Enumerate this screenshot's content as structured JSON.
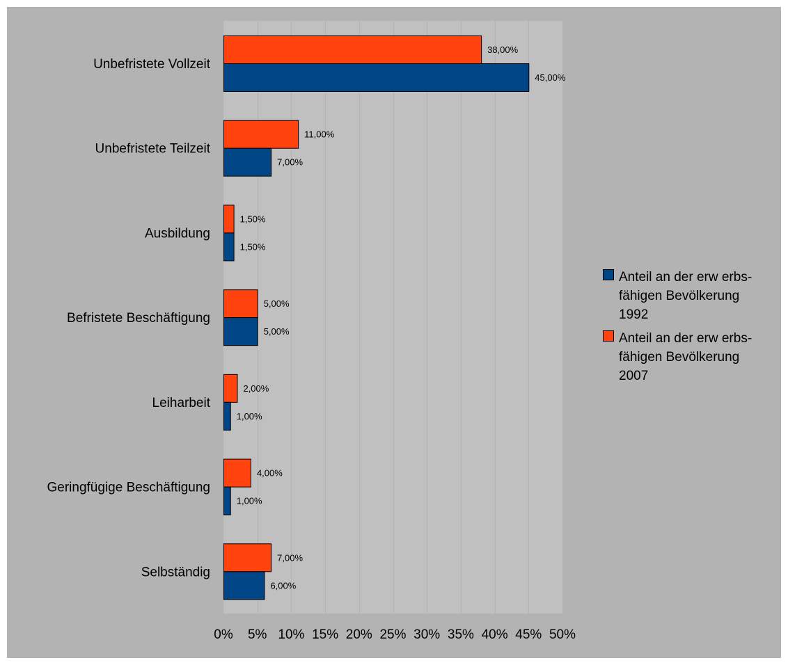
{
  "chart_data": {
    "type": "bar",
    "orientation": "horizontal",
    "title": "",
    "xlabel": "",
    "ylabel": "",
    "xlim": [
      0,
      50
    ],
    "x_ticks": [
      0,
      5,
      10,
      15,
      20,
      25,
      30,
      35,
      40,
      45,
      50
    ],
    "x_tick_labels": [
      "0%",
      "5%",
      "10%",
      "15%",
      "20%",
      "25%",
      "30%",
      "35%",
      "40%",
      "45%",
      "50%"
    ],
    "grid": true,
    "legend_placement": "right",
    "categories": [
      "Unbefristete Vollzeit",
      "Unbefristete Teilzeit",
      "Ausbildung",
      "Befristete Beschäftigung",
      "Leiharbeit",
      "Geringfügige Beschäftigung",
      "Selbständig"
    ],
    "series": [
      {
        "name": "Anteil an der erw erbs-fähigen Bevölkerung 1992",
        "legend_lines": [
          "Anteil an der erw erbs-",
          "fähigen Bevölkerung",
          "1992"
        ],
        "color": "#004586",
        "values": [
          45,
          7,
          1.5,
          5,
          1,
          1,
          6
        ],
        "labels": [
          "45,00%",
          "7,00%",
          "1,50%",
          "5,00%",
          "1,00%",
          "1,00%",
          "6,00%"
        ]
      },
      {
        "name": "Anteil an der erw erbs-fähigen Bevölkerung 2007",
        "legend_lines": [
          "Anteil an der erw erbs-",
          "fähigen Bevölkerung",
          "2007"
        ],
        "color": "#ff420e",
        "values": [
          38,
          11,
          1.5,
          5,
          2,
          4,
          7
        ],
        "labels": [
          "38,00%",
          "11,00%",
          "1,50%",
          "5,00%",
          "2,00%",
          "4,00%",
          "7,00%"
        ]
      }
    ]
  },
  "colors": {
    "frame_background": "#b3b3b3",
    "plot_background": "#c0c0c0",
    "gridline": "#b3b3b3"
  }
}
